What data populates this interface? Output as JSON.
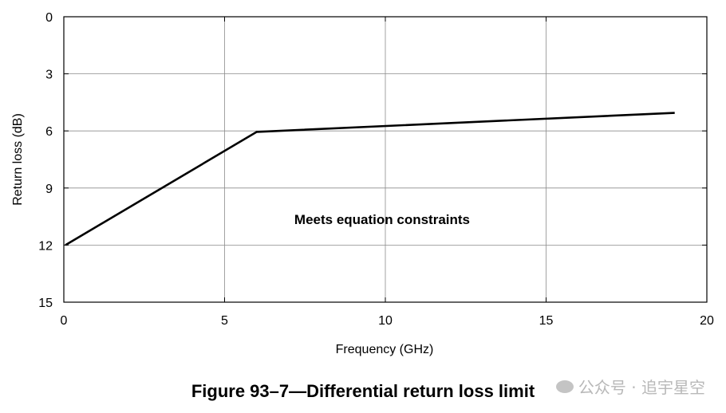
{
  "chart_data": {
    "type": "line",
    "title": "",
    "xlabel": "Frequency (GHz)",
    "ylabel": "Return loss (dB)",
    "xlim": [
      0,
      20
    ],
    "ylim": [
      0,
      15
    ],
    "y_inverted": true,
    "grid": true,
    "xticks": [
      "0",
      "5",
      "10",
      "15",
      "20"
    ],
    "yticks": [
      "0",
      "3",
      "6",
      "9",
      "12",
      "15"
    ],
    "series": [
      {
        "x": [
          0.05,
          6,
          19
        ],
        "y": [
          12,
          6.05,
          5.05
        ],
        "color": "#000000"
      }
    ],
    "annotation": {
      "text": "Meets equation constraints",
      "x": 9.9,
      "y": 10.9
    }
  },
  "caption": "Figure 93–7—Differential return loss limit",
  "watermark": "公众号 · 追宇星空"
}
